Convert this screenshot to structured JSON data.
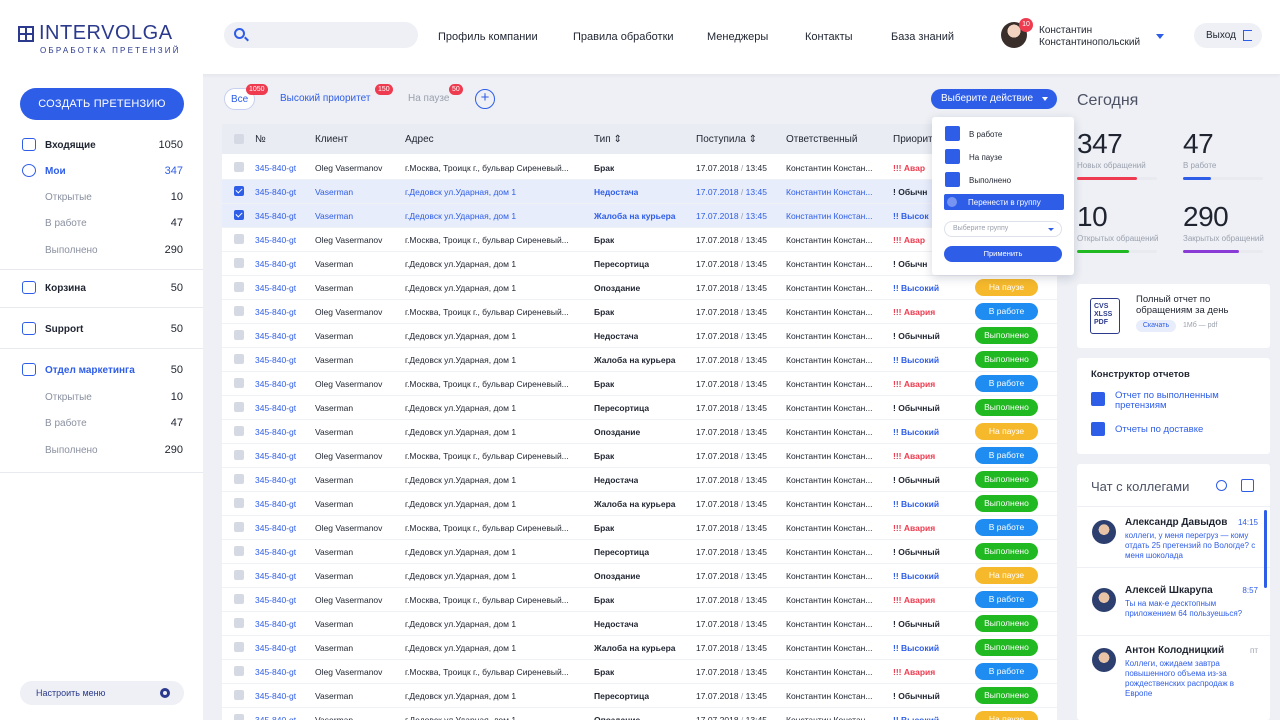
{
  "header": {
    "logo_main": "INTERVOLGA",
    "logo_sub": "ОБРАБОТКА ПРЕТЕНЗИЙ",
    "nav": [
      "Профиль компании",
      "Правила обработки",
      "Менеджеры",
      "Контакты",
      "База знаний"
    ],
    "user_first": "Константин",
    "user_last": "Константинопольский",
    "notif_count": "10",
    "logout_label": "Выход"
  },
  "sidebar": {
    "create_label": "СОЗДАТЬ ПРЕТЕНЗИЮ",
    "items": [
      {
        "label": "Входящие",
        "count": "1050"
      },
      {
        "label": "Мои",
        "count": "347"
      },
      {
        "label": "Открытые",
        "count": "10"
      },
      {
        "label": "В работе",
        "count": "47"
      },
      {
        "label": "Выполнено",
        "count": "290"
      },
      {
        "label": "Корзина",
        "count": "50"
      },
      {
        "label": "Support",
        "count": "50"
      },
      {
        "label": "Отдел маркетинга",
        "count": "50"
      },
      {
        "label": "Открытые",
        "count": "10"
      },
      {
        "label": "В работе",
        "count": "47"
      },
      {
        "label": "Выполнено",
        "count": "290"
      }
    ],
    "menu_label": "Настроить меню"
  },
  "filters": [
    {
      "label": "Все",
      "count": "1050"
    },
    {
      "label": "Высокий приоритет",
      "count": "150"
    },
    {
      "label": "На паузе",
      "count": "50"
    }
  ],
  "action": {
    "label": "Выберите действие",
    "items": [
      "В работе",
      "На паузе",
      "Выполнено",
      "Перенести в группу"
    ],
    "select_placeholder": "Выберите группу",
    "apply_label": "Применить"
  },
  "table": {
    "headers": [
      "№",
      "Клиент",
      "Адрес",
      "Тип",
      "Поступила",
      "Ответственный",
      "Приорит"
    ],
    "date": "17.07.2018",
    "time": "13:45",
    "number": "345-840-gt",
    "responsible": "Константин Констан...",
    "rows": [
      {
        "client": "Oleg Vasermanov",
        "addr": "г.Москва, Троицк г., бульвар Сиреневый...",
        "type": "Брак",
        "prio": "Авар",
        "pk": "red",
        "marks": "!!!",
        "status": "",
        "sc": "",
        "checked": false,
        "hl": false
      },
      {
        "client": "Vaserman",
        "addr": "г.Дедовск ул.Ударная, дом 1",
        "type": "Недостача",
        "prio": "Обычн",
        "pk": "blk",
        "marks": "!",
        "status": "",
        "sc": "",
        "checked": true,
        "hl": true
      },
      {
        "client": "Vaserman",
        "addr": "г.Дедовск ул.Ударная, дом 1",
        "type": "Жалоба на курьера",
        "prio": "Высок",
        "pk": "blue",
        "marks": "!!",
        "status": "",
        "sc": "",
        "checked": true,
        "hl": true
      },
      {
        "client": "Oleg Vasermanov",
        "addr": "г.Москва, Троицк г., бульвар Сиреневый...",
        "type": "Брак",
        "prio": "Авар",
        "pk": "red",
        "marks": "!!!",
        "status": "",
        "sc": "",
        "checked": false,
        "hl": false
      },
      {
        "client": "Vaserman",
        "addr": "г.Дедовск ул.Ударная, дом 1",
        "type": "Пересортица",
        "prio": "Обычн",
        "pk": "blk",
        "marks": "!",
        "status": "",
        "sc": "",
        "checked": false,
        "hl": false
      },
      {
        "client": "Vaserman",
        "addr": "г.Дедовск ул.Ударная, дом 1",
        "type": "Опоздание",
        "prio": "Высокий",
        "pk": "blue",
        "marks": "!!",
        "status": "На паузе",
        "sc": "#f6b92b",
        "checked": false,
        "hl": false
      },
      {
        "client": "Oleg Vasermanov",
        "addr": "г.Москва, Троицк г., бульвар Сиреневый...",
        "type": "Брак",
        "prio": "Авария",
        "pk": "red",
        "marks": "!!!",
        "status": "В работе",
        "sc": "#1e8cf0",
        "checked": false,
        "hl": false
      },
      {
        "client": "Vaserman",
        "addr": "г.Дедовск ул.Ударная, дом 1",
        "type": "Недостача",
        "prio": "Обычный",
        "pk": "blk",
        "marks": "!",
        "status": "Выполнено",
        "sc": "#21b921",
        "checked": false,
        "hl": false
      },
      {
        "client": "Vaserman",
        "addr": "г.Дедовск ул.Ударная, дом 1",
        "type": "Жалоба на курьера",
        "prio": "Высокий",
        "pk": "blue",
        "marks": "!!",
        "status": "Выполнено",
        "sc": "#21b921",
        "checked": false,
        "hl": false
      },
      {
        "client": "Oleg Vasermanov",
        "addr": "г.Москва, Троицк г., бульвар Сиреневый...",
        "type": "Брак",
        "prio": "Авария",
        "pk": "red",
        "marks": "!!!",
        "status": "В работе",
        "sc": "#1e8cf0",
        "checked": false,
        "hl": false
      },
      {
        "client": "Vaserman",
        "addr": "г.Дедовск ул.Ударная, дом 1",
        "type": "Пересортица",
        "prio": "Обычный",
        "pk": "blk",
        "marks": "!",
        "status": "Выполнено",
        "sc": "#21b921",
        "checked": false,
        "hl": false
      },
      {
        "client": "Vaserman",
        "addr": "г.Дедовск ул.Ударная, дом 1",
        "type": "Опоздание",
        "prio": "Высокий",
        "pk": "blue",
        "marks": "!!",
        "status": "На паузе",
        "sc": "#f6b92b",
        "checked": false,
        "hl": false
      },
      {
        "client": "Oleg Vasermanov",
        "addr": "г.Москва, Троицк г., бульвар Сиреневый...",
        "type": "Брак",
        "prio": "Авария",
        "pk": "red",
        "marks": "!!!",
        "status": "В работе",
        "sc": "#1e8cf0",
        "checked": false,
        "hl": false
      },
      {
        "client": "Vaserman",
        "addr": "г.Дедовск ул.Ударная, дом 1",
        "type": "Недостача",
        "prio": "Обычный",
        "pk": "blk",
        "marks": "!",
        "status": "Выполнено",
        "sc": "#21b921",
        "checked": false,
        "hl": false
      },
      {
        "client": "Vaserman",
        "addr": "г.Дедовск ул.Ударная, дом 1",
        "type": "Жалоба на курьера",
        "prio": "Высокий",
        "pk": "blue",
        "marks": "!!",
        "status": "Выполнено",
        "sc": "#21b921",
        "checked": false,
        "hl": false
      },
      {
        "client": "Oleg Vasermanov",
        "addr": "г.Москва, Троицк г., бульвар Сиреневый...",
        "type": "Брак",
        "prio": "Авария",
        "pk": "red",
        "marks": "!!!",
        "status": "В работе",
        "sc": "#1e8cf0",
        "checked": false,
        "hl": false
      },
      {
        "client": "Vaserman",
        "addr": "г.Дедовск ул.Ударная, дом 1",
        "type": "Пересортица",
        "prio": "Обычный",
        "pk": "blk",
        "marks": "!",
        "status": "Выполнено",
        "sc": "#21b921",
        "checked": false,
        "hl": false
      },
      {
        "client": "Vaserman",
        "addr": "г.Дедовск ул.Ударная, дом 1",
        "type": "Опоздание",
        "prio": "Высокий",
        "pk": "blue",
        "marks": "!!",
        "status": "На паузе",
        "sc": "#f6b92b",
        "checked": false,
        "hl": false
      },
      {
        "client": "Oleg Vasermanov",
        "addr": "г.Москва, Троицк г., бульвар Сиреневый...",
        "type": "Брак",
        "prio": "Авария",
        "pk": "red",
        "marks": "!!!",
        "status": "В работе",
        "sc": "#1e8cf0",
        "checked": false,
        "hl": false
      },
      {
        "client": "Vaserman",
        "addr": "г.Дедовск ул.Ударная, дом 1",
        "type": "Недостача",
        "prio": "Обычный",
        "pk": "blk",
        "marks": "!",
        "status": "Выполнено",
        "sc": "#21b921",
        "checked": false,
        "hl": false
      },
      {
        "client": "Vaserman",
        "addr": "г.Дедовск ул.Ударная, дом 1",
        "type": "Жалоба на курьера",
        "prio": "Высокий",
        "pk": "blue",
        "marks": "!!",
        "status": "Выполнено",
        "sc": "#21b921",
        "checked": false,
        "hl": false
      },
      {
        "client": "Oleg Vasermanov",
        "addr": "г.Москва, Троицк г., бульвар Сиреневый...",
        "type": "Брак",
        "prio": "Авария",
        "pk": "red",
        "marks": "!!!",
        "status": "В работе",
        "sc": "#1e8cf0",
        "checked": false,
        "hl": false
      },
      {
        "client": "Vaserman",
        "addr": "г.Дедовск ул.Ударная, дом 1",
        "type": "Пересортица",
        "prio": "Обычный",
        "pk": "blk",
        "marks": "!",
        "status": "Выполнено",
        "sc": "#21b921",
        "checked": false,
        "hl": false
      },
      {
        "client": "Vaserman",
        "addr": "г.Дедовск ул.Ударная, дом 1",
        "type": "Опоздание",
        "prio": "Высокий",
        "pk": "blue",
        "marks": "!!",
        "status": "На паузе",
        "sc": "#f6b92b",
        "checked": false,
        "hl": false
      }
    ]
  },
  "today": {
    "title": "Сегодня",
    "stats": [
      {
        "value": "347",
        "label": "Новых обращений",
        "fill": 0.75,
        "color": "#ee3b4f"
      },
      {
        "value": "47",
        "label": "В работе",
        "fill": 0.35,
        "color": "#2e5de8"
      },
      {
        "value": "10",
        "label": "Открытых обращений",
        "fill": 0.65,
        "color": "#21b921"
      },
      {
        "value": "290",
        "label": "Закрытых обращений",
        "fill": 0.7,
        "color": "#8a3bd6"
      }
    ]
  },
  "report": {
    "icon_text": "CVS XLSS PDF",
    "title": "Полный отчет по обращениям за день",
    "download_label": "Скачать",
    "size": "1Мб — pdf"
  },
  "constructor": {
    "title": "Конструктор отчетов",
    "items": [
      "Отчет по выполненным претензиям",
      "Отчеты по доставке"
    ]
  },
  "chat": {
    "title": "Чат с коллегами",
    "messages": [
      {
        "name": "Александр Давыдов",
        "time": "14:15",
        "text": "коллеги, у меня перегруз — кому отдать 25 претензий по Вологде? с меня шоколада"
      },
      {
        "name": "Алексей Шкарупа",
        "time": "8:57",
        "text": "Ты на мак-е десктопным приложением 64 пользуешься?"
      },
      {
        "name": "Антон Колодницкий",
        "time": "пт",
        "text": "Коллеги, ожидаем завтра повышенного объема из-за рождественских распродаж в Европе"
      }
    ]
  }
}
